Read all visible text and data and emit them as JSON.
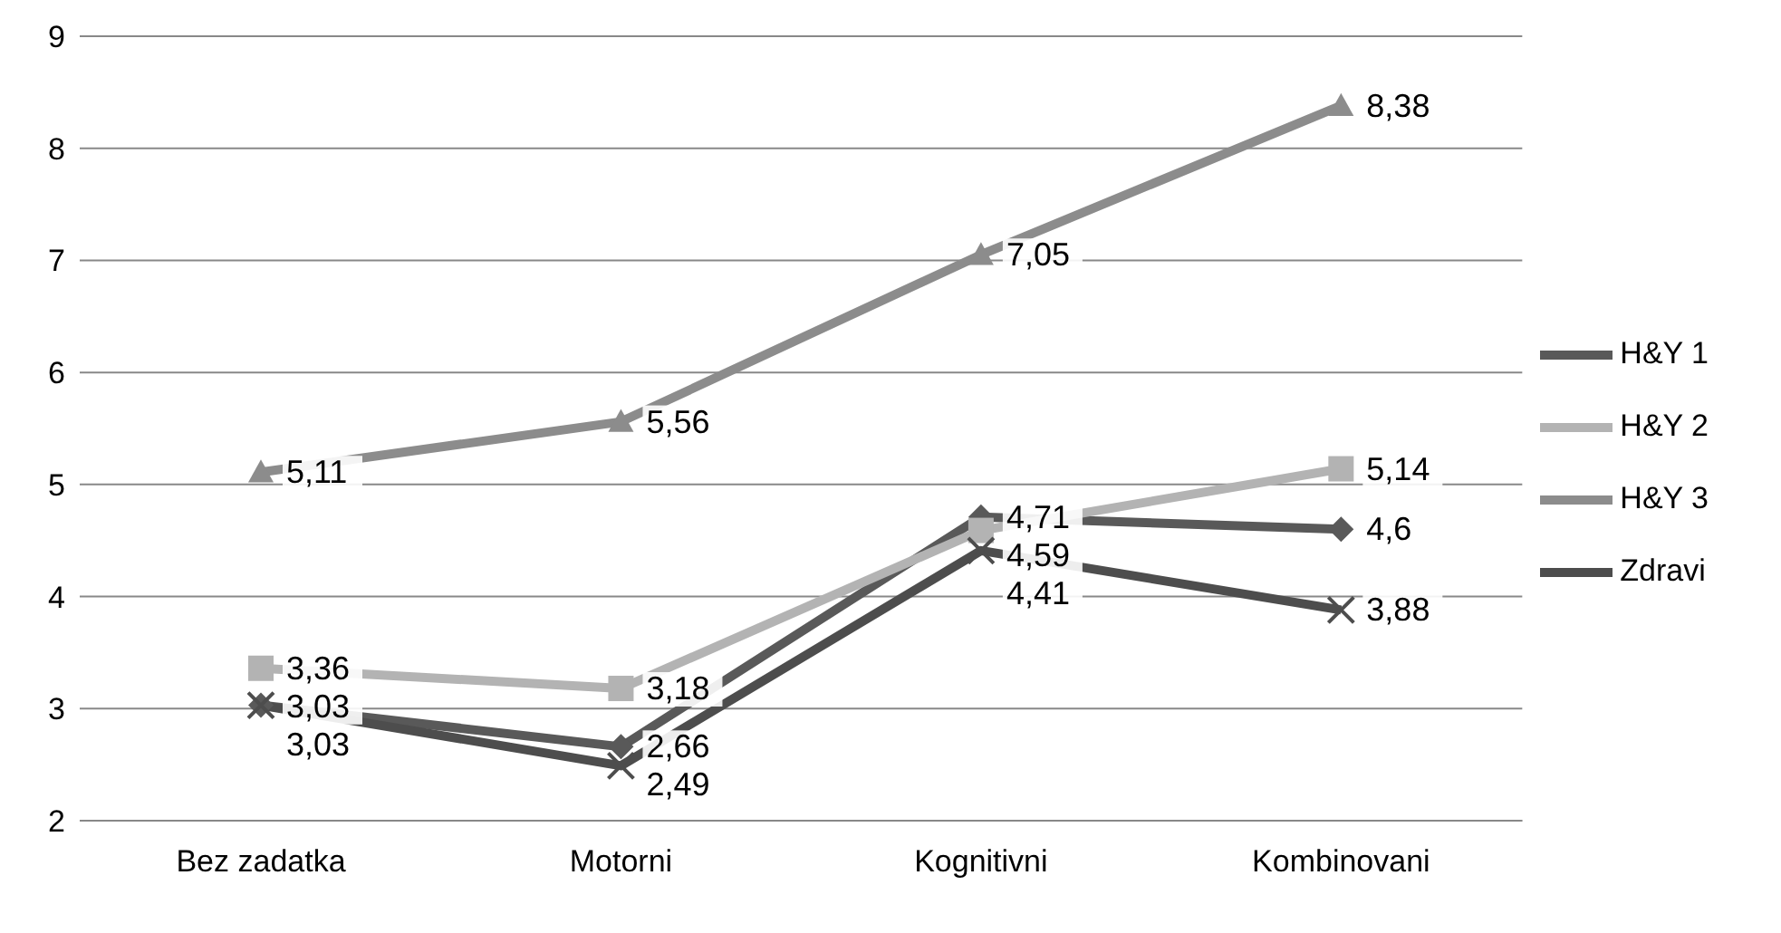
{
  "chart_data": {
    "type": "line",
    "categories": [
      "Bez zadatka",
      "Motorni",
      "Kognitivni",
      "Kombinovani"
    ],
    "series": [
      {
        "name": "H&Y 1",
        "color": "#595959",
        "marker": "diamond",
        "values": [
          3.03,
          2.66,
          4.71,
          4.6
        ],
        "value_labels": [
          "3,03",
          "2,66",
          "4,71",
          "4,6"
        ]
      },
      {
        "name": "H&Y 2",
        "color": "#b3b3b3",
        "marker": "square",
        "values": [
          3.36,
          3.18,
          4.59,
          5.14
        ],
        "value_labels": [
          "3,36",
          "3,18",
          "4,59",
          "5,14"
        ]
      },
      {
        "name": "H&Y 3",
        "color": "#8c8c8c",
        "marker": "triangle",
        "values": [
          5.11,
          5.56,
          7.05,
          8.38
        ],
        "value_labels": [
          "5,11",
          "5,56",
          "7,05",
          "8,38"
        ]
      },
      {
        "name": "Zdravi",
        "color": "#4d4d4d",
        "marker": "cross",
        "values": [
          3.03,
          2.49,
          4.41,
          3.88
        ],
        "value_labels": [
          "3,03",
          "2,49",
          "4,41",
          "3,88"
        ]
      }
    ],
    "ylim": [
      2,
      9
    ],
    "yticks": [
      2,
      3,
      4,
      5,
      6,
      7,
      8,
      9
    ],
    "grid": "y",
    "legend": "right"
  }
}
